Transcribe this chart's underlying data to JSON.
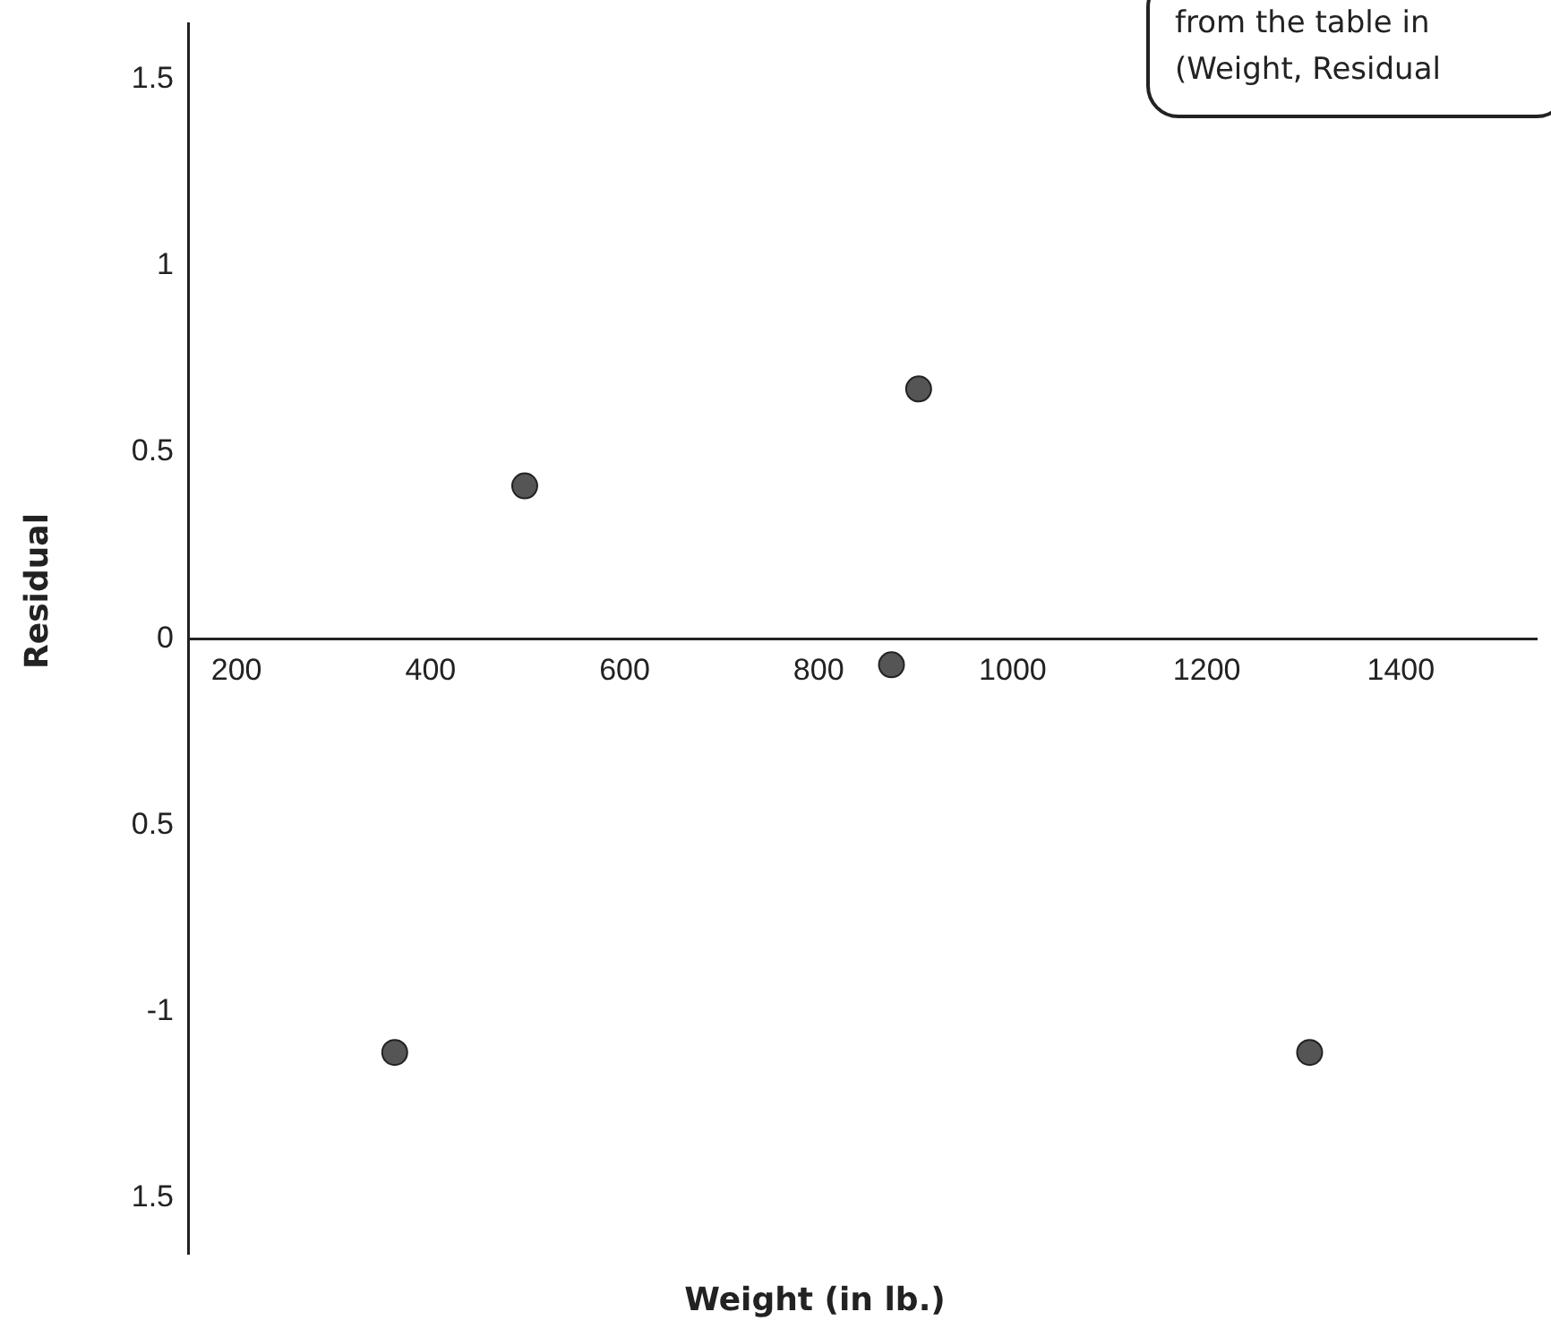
{
  "chart_data": {
    "type": "scatter",
    "xlabel": "Weight (in lb.)",
    "ylabel": "Residual",
    "annotations": [
      "from the table in",
      "(Weight, Residual"
    ],
    "x": [
      363,
      497,
      875,
      903,
      1306
    ],
    "values": [
      -1.11,
      0.41,
      -0.07,
      0.67,
      -1.11
    ],
    "color": "#555555",
    "marker": "circle",
    "grid": false,
    "legend": false,
    "xlim": [
      150,
      1540
    ],
    "xticks": [
      200,
      400,
      600,
      800,
      1000,
      1200,
      1400
    ],
    "ylim": [
      -1.65,
      1.65
    ],
    "yticks": [
      {
        "value": -1.5,
        "label": "1.5"
      },
      -1,
      {
        "value": -0.5,
        "label": "0.5"
      },
      0,
      0.5,
      1,
      1.5
    ]
  }
}
